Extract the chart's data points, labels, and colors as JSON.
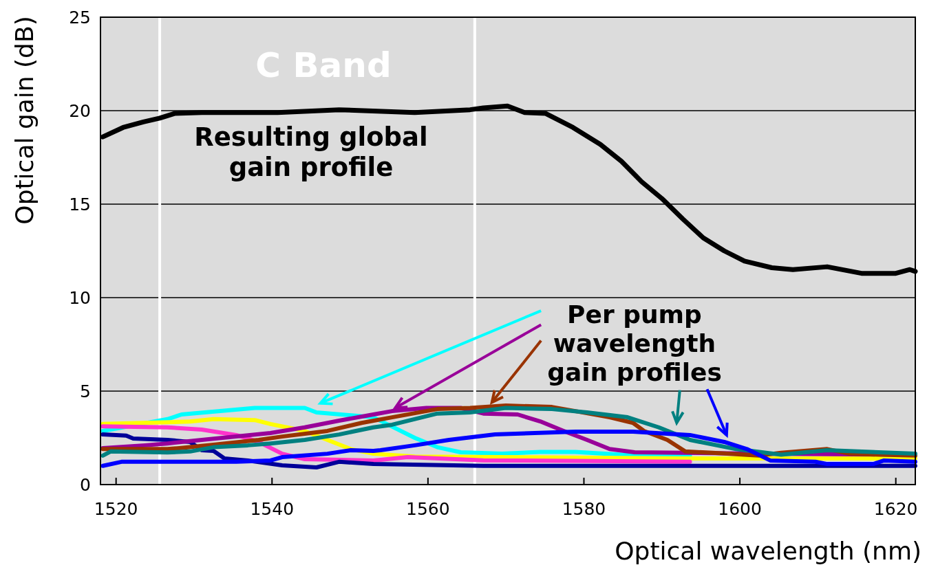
{
  "chart_data": {
    "type": "line",
    "xlabel": "Optical wavelength (nm)",
    "ylabel": "Optical gain (dB)",
    "xlim": [
      1518,
      1622.5
    ],
    "xticks": [
      1520,
      1540,
      1560,
      1580,
      1600,
      1620
    ],
    "ylim": [
      0,
      25
    ],
    "yticks": [
      0,
      5,
      10,
      15,
      20,
      25
    ],
    "grid": "y",
    "legend": false,
    "marker": "none",
    "line_style": "solid",
    "ref_lines": [
      {
        "axis": "x",
        "value": 1525.6,
        "color": "#ffffff"
      },
      {
        "axis": "x",
        "value": 1566,
        "color": "#ffffff"
      }
    ],
    "annotations": [
      "C Band",
      "Resulting global gain profile",
      {
        "text": "Per pump wavelength gain profiles",
        "x": 1555.8,
        "y": 4.1
      }
    ],
    "series": [
      {
        "color": "#000000",
        "x": [
          1518.3,
          1520.9,
          1523.5,
          1525.6,
          1527.5,
          1531,
          1540.7,
          1548.6,
          1558.3,
          1565.4,
          1567.1,
          1570.2,
          1572.4,
          1575.1,
          1578.6,
          1582.1,
          1584.8,
          1587.4,
          1590,
          1592.7,
          1595.3,
          1598,
          1600.6,
          1604.1,
          1606.8,
          1611.2,
          1615.6,
          1620,
          1621.8,
          1622.5
        ],
        "values": [
          18.6,
          19.1,
          19.4,
          19.6,
          19.85,
          19.9,
          19.9,
          20.05,
          19.9,
          20.05,
          20.15,
          20.25,
          19.9,
          19.85,
          19.1,
          18.2,
          17.3,
          16.2,
          15.3,
          14.2,
          13.2,
          12.5,
          11.95,
          11.6,
          11.5,
          11.65,
          11.3,
          11.3,
          11.5,
          11.4
        ]
      },
      {
        "color": "#00ffff",
        "x": [
          1518.3,
          1526.6,
          1528.4,
          1537.8,
          1544.2,
          1545.7,
          1553,
          1555.4,
          1558.3,
          1561.2,
          1564.2,
          1569.5,
          1574.4,
          1578.9,
          1584.8,
          1593.6
        ],
        "values": [
          2.87,
          3.5,
          3.75,
          4.1,
          4.1,
          3.86,
          3.6,
          3.1,
          2.5,
          2.0,
          1.73,
          1.65,
          1.75,
          1.75,
          1.6,
          1.55
        ]
      },
      {
        "color": "#ffff00",
        "x": [
          1518.3,
          1529.5,
          1532.5,
          1537.8,
          1539.8,
          1544.2,
          1547.1,
          1550.1,
          1553,
          1558.3,
          1593.6,
          1622.5
        ],
        "values": [
          3.24,
          3.37,
          3.5,
          3.45,
          3.24,
          2.87,
          2.39,
          1.9,
          1.65,
          1.5,
          1.4,
          1.4
        ]
      },
      {
        "color": "#ff33cc",
        "x": [
          1518.3,
          1526.6,
          1531,
          1535.4,
          1538.3,
          1541.3,
          1544.2,
          1553,
          1557.4,
          1567.1,
          1593.6
        ],
        "values": [
          3.12,
          3.06,
          2.94,
          2.65,
          2.28,
          1.65,
          1.36,
          1.29,
          1.47,
          1.3,
          1.22
        ]
      },
      {
        "color": "#000099",
        "x": [
          1518.3,
          1521.3,
          1522.2,
          1526.6,
          1529.5,
          1531,
          1532.5,
          1533.9,
          1536.9,
          1541.3,
          1545.7,
          1548.6,
          1553,
          1567.1,
          1593.6,
          1622.5
        ],
        "values": [
          2.68,
          2.62,
          2.46,
          2.39,
          2.28,
          1.84,
          1.8,
          1.4,
          1.29,
          1.03,
          0.92,
          1.22,
          1.1,
          1.0,
          1.0,
          1.0
        ]
      },
      {
        "color": "#990099",
        "x": [
          1518.3,
          1523.7,
          1526.6,
          1531,
          1535.4,
          1539.8,
          1544.2,
          1548.6,
          1553,
          1555.4,
          1559.8,
          1564.2,
          1567.1,
          1571.5,
          1574.4,
          1577.4,
          1580.4,
          1583.3,
          1586.5,
          1602.4,
          1622.5
        ],
        "values": [
          1.95,
          2.1,
          2.2,
          2.39,
          2.57,
          2.76,
          3.06,
          3.42,
          3.75,
          3.93,
          4.1,
          4.1,
          3.8,
          3.75,
          3.38,
          2.87,
          2.39,
          1.9,
          1.73,
          1.65,
          1.6
        ]
      },
      {
        "color": "#993300",
        "x": [
          1518.3,
          1526.6,
          1528.1,
          1532.5,
          1538.3,
          1541.3,
          1547.1,
          1551.5,
          1555.4,
          1561.2,
          1565.4,
          1570,
          1575.9,
          1578.9,
          1583.3,
          1586.3,
          1587.7,
          1590.7,
          1593,
          1596.5,
          1602.4,
          1605.3,
          1611.2,
          1614.1,
          1622.5
        ],
        "values": [
          1.9,
          1.9,
          1.95,
          2.13,
          2.39,
          2.57,
          2.87,
          3.3,
          3.6,
          4.04,
          4.1,
          4.23,
          4.15,
          3.93,
          3.6,
          3.3,
          2.87,
          2.39,
          1.77,
          1.7,
          1.55,
          1.7,
          1.9,
          1.65,
          1.55
        ]
      },
      {
        "color": "#008080",
        "x": [
          1518.3,
          1519.3,
          1526.6,
          1529.5,
          1532.5,
          1536.9,
          1539.8,
          1544.2,
          1548.6,
          1553,
          1555.4,
          1561.2,
          1565.4,
          1570,
          1575.9,
          1580.4,
          1585.6,
          1589.6,
          1593.6,
          1599.5,
          1605.3,
          1611.2,
          1622.5
        ],
        "values": [
          1.55,
          1.77,
          1.72,
          1.77,
          2.0,
          2.1,
          2.2,
          2.39,
          2.68,
          3.06,
          3.2,
          3.8,
          3.86,
          4.1,
          4.04,
          3.86,
          3.6,
          3.06,
          2.39,
          1.9,
          1.6,
          1.84,
          1.65
        ]
      },
      {
        "color": "#0000ff",
        "x": [
          1518.3,
          1520.7,
          1535.4,
          1539.8,
          1541.3,
          1547.1,
          1550.1,
          1553,
          1553.9,
          1558.3,
          1562.7,
          1568.6,
          1578.9,
          1586.3,
          1593.6,
          1598,
          1600.9,
          1603.9,
          1609.7,
          1611.2,
          1617.1,
          1618.5,
          1622.5
        ],
        "values": [
          1.0,
          1.22,
          1.22,
          1.29,
          1.47,
          1.65,
          1.84,
          1.8,
          1.84,
          2.1,
          2.39,
          2.68,
          2.83,
          2.83,
          2.65,
          2.28,
          1.9,
          1.29,
          1.22,
          1.1,
          1.1,
          1.29,
          1.22
        ]
      }
    ]
  }
}
